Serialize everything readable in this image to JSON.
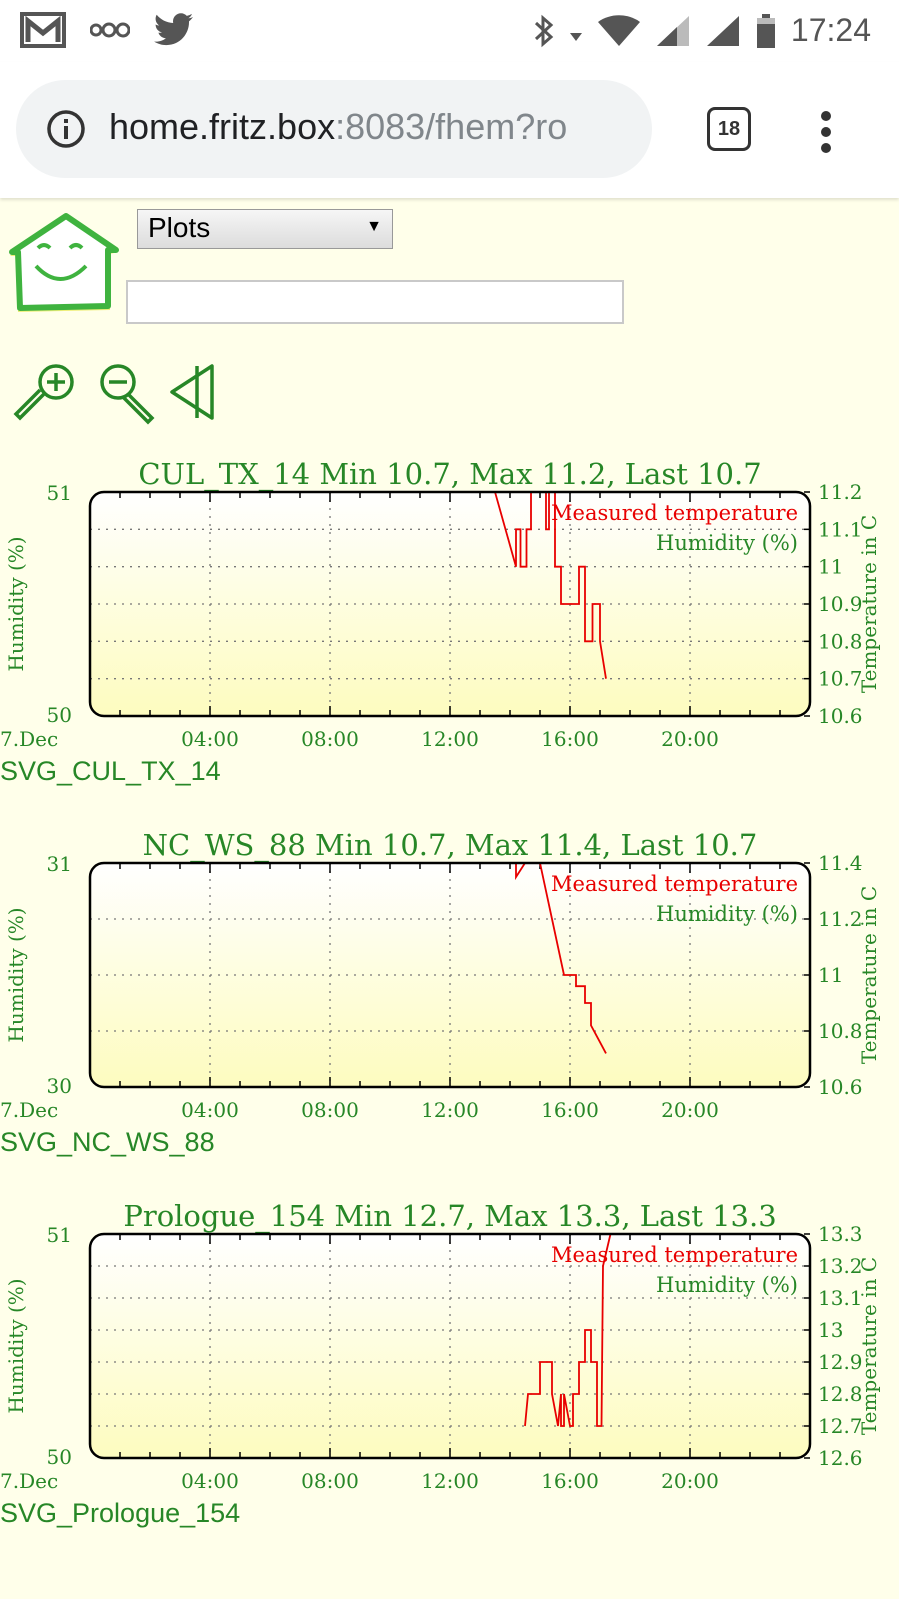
{
  "statusbar": {
    "time": "17:24"
  },
  "browser": {
    "url_host": "home.fritz.box",
    "url_rest": ":8083/fhem?ro",
    "tab_count": "18"
  },
  "toolbar": {
    "room_select": "Plots",
    "command_input": ""
  },
  "colors": {
    "green": "#278727",
    "red": "#e80000",
    "grid": "#888888",
    "bg": "#ffffea"
  },
  "charts": [
    {
      "title": "CUL_TX_14 Min 10.7, Max 11.2, Last 10.7",
      "link": "SVG_CUL_TX_14",
      "y_left_label": "Humidity (%)",
      "y_right_label": "Temperature in C",
      "left_ticks": [
        "51",
        "50"
      ],
      "right_ticks": [
        "11.2",
        "11.1",
        "11",
        "10.9",
        "10.8",
        "10.7",
        "10.6"
      ],
      "legend_temp": "Measured temperature",
      "legend_hum": "Humidity (%)",
      "x_first": "7.Dec",
      "x_ticks": [
        "04:00",
        "08:00",
        "12:00",
        "16:00",
        "20:00"
      ]
    },
    {
      "title": "NC_WS_88 Min 10.7, Max 11.4, Last 10.7",
      "link": "SVG_NC_WS_88",
      "y_left_label": "Humidity (%)",
      "y_right_label": "Temperature in C",
      "left_ticks": [
        "31",
        "30"
      ],
      "right_ticks": [
        "11.4",
        "11.2",
        "11",
        "10.8",
        "10.6"
      ],
      "legend_temp": "Measured temperature",
      "legend_hum": "Humidity (%)",
      "x_first": "7.Dec",
      "x_ticks": [
        "04:00",
        "08:00",
        "12:00",
        "16:00",
        "20:00"
      ]
    },
    {
      "title": "Prologue_154 Min 12.7, Max 13.3, Last 13.3",
      "link": "SVG_Prologue_154",
      "y_left_label": "Humidity (%)",
      "y_right_label": "Temperature in C",
      "left_ticks": [
        "51",
        "50"
      ],
      "right_ticks": [
        "13.3",
        "13.2",
        "13.1",
        "13",
        "12.9",
        "12.8",
        "12.7",
        "12.6"
      ],
      "legend_temp": "Measured temperature",
      "legend_hum": "Humidity (%)",
      "x_first": "7.Dec",
      "x_ticks": [
        "04:00",
        "08:00",
        "12:00",
        "16:00",
        "20:00"
      ]
    }
  ],
  "chart_data": [
    {
      "type": "line",
      "title": "CUL_TX_14 Min 10.7, Max 11.2, Last 10.7",
      "ylabel": "Humidity (%)",
      "y2label": "Temperature in C",
      "ylim": [
        50,
        51
      ],
      "y2lim": [
        10.6,
        11.2
      ],
      "xlim": [
        0,
        24
      ],
      "series": [
        {
          "name": "Measured temperature",
          "axis": "right",
          "x": [
            13.5,
            14.2,
            14.2,
            14.35,
            14.35,
            14.55,
            14.55,
            14.7,
            14.7,
            15.2,
            15.2,
            15.3,
            15.3,
            15.5,
            15.5,
            15.7,
            15.7,
            16.3,
            16.3,
            16.5,
            16.5,
            16.75,
            16.75,
            17.0,
            17.0,
            17.2
          ],
          "y": [
            11.2,
            11.0,
            11.1,
            11.1,
            11.0,
            11.0,
            11.1,
            11.1,
            11.2,
            11.2,
            11.1,
            11.1,
            11.2,
            11.2,
            11.0,
            11.0,
            10.9,
            10.9,
            11.0,
            11.0,
            10.8,
            10.8,
            10.9,
            10.9,
            10.8,
            10.7
          ]
        },
        {
          "name": "Humidity (%)",
          "axis": "left",
          "x": [],
          "y": []
        }
      ]
    },
    {
      "type": "line",
      "title": "NC_WS_88 Min 10.7, Max 11.4, Last 10.7",
      "ylabel": "Humidity (%)",
      "y2label": "Temperature in C",
      "ylim": [
        30,
        31
      ],
      "y2lim": [
        10.6,
        11.4
      ],
      "xlim": [
        0,
        24
      ],
      "series": [
        {
          "name": "Measured temperature",
          "axis": "right",
          "x": [
            14.2,
            14.2,
            14.5,
            15.0,
            15.3,
            15.8,
            16.2,
            16.2,
            16.5,
            16.5,
            16.7,
            16.7,
            17.0,
            17.2
          ],
          "y": [
            11.4,
            11.35,
            11.4,
            11.4,
            11.25,
            11.0,
            11.0,
            10.96,
            10.96,
            10.9,
            10.9,
            10.82,
            10.76,
            10.72
          ]
        },
        {
          "name": "Humidity (%)",
          "axis": "left",
          "x": [
            14.2,
            17.2
          ],
          "y": [
            30.0,
            30.0
          ]
        }
      ]
    },
    {
      "type": "line",
      "title": "Prologue_154 Min 12.7, Max 13.3, Last 13.3",
      "ylabel": "Humidity (%)",
      "y2label": "Temperature in C",
      "ylim": [
        50,
        51
      ],
      "y2lim": [
        12.6,
        13.3
      ],
      "xlim": [
        0,
        24
      ],
      "series": [
        {
          "name": "Measured temperature",
          "axis": "right",
          "x": [
            14.5,
            14.6,
            14.6,
            15.0,
            15.0,
            15.4,
            15.4,
            15.6,
            15.7,
            15.7,
            15.8,
            15.8,
            16.0,
            16.1,
            16.1,
            16.3,
            16.3,
            16.5,
            16.5,
            16.7,
            16.7,
            16.9,
            16.9,
            17.05,
            17.1,
            17.1,
            17.35
          ],
          "y": [
            12.7,
            12.8,
            12.8,
            12.8,
            12.9,
            12.9,
            12.8,
            12.7,
            12.8,
            12.7,
            12.7,
            12.8,
            12.7,
            12.7,
            12.8,
            12.8,
            12.9,
            12.9,
            13.0,
            13.0,
            12.9,
            12.9,
            12.7,
            12.7,
            13.2,
            13.2,
            13.3
          ]
        },
        {
          "name": "Humidity (%)",
          "axis": "left",
          "x": [],
          "y": []
        }
      ]
    }
  ]
}
